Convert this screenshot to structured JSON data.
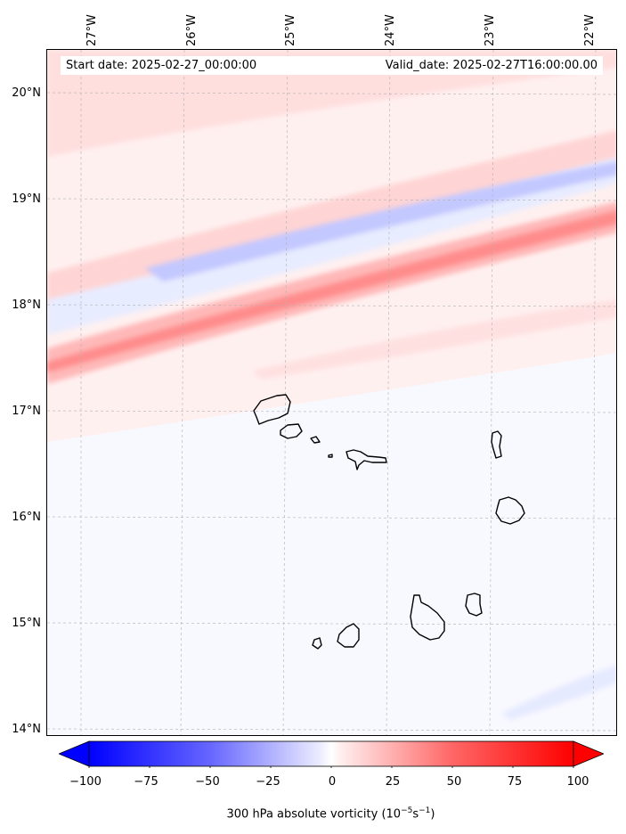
{
  "map": {
    "start_label": "Start date: 2025-02-27_00:00:00",
    "valid_label": "Valid_date: 2025-02-27T16:00:00.00",
    "lon_labels": [
      "27°W",
      "26°W",
      "25°W",
      "24°W",
      "23°W",
      "22°W"
    ],
    "lat_labels": [
      "20°N",
      "19°N",
      "18°N",
      "17°N",
      "16°N",
      "15°N",
      "14°N"
    ],
    "gridlines": true,
    "colors": {
      "positive": "#ff0000",
      "negative": "#0000ff",
      "background": "#f8f8ff",
      "coast": "#000000"
    }
  },
  "colorbar": {
    "ticks": [
      "−100",
      "−75",
      "−50",
      "−25",
      "0",
      "25",
      "50",
      "75",
      "100"
    ],
    "label_prefix": "300 hPa absolute vorticity (10",
    "label_exp1": "−5",
    "label_mid": "s",
    "label_exp2": "−1",
    "label_suffix": ")",
    "min": -100,
    "max": 100
  }
}
